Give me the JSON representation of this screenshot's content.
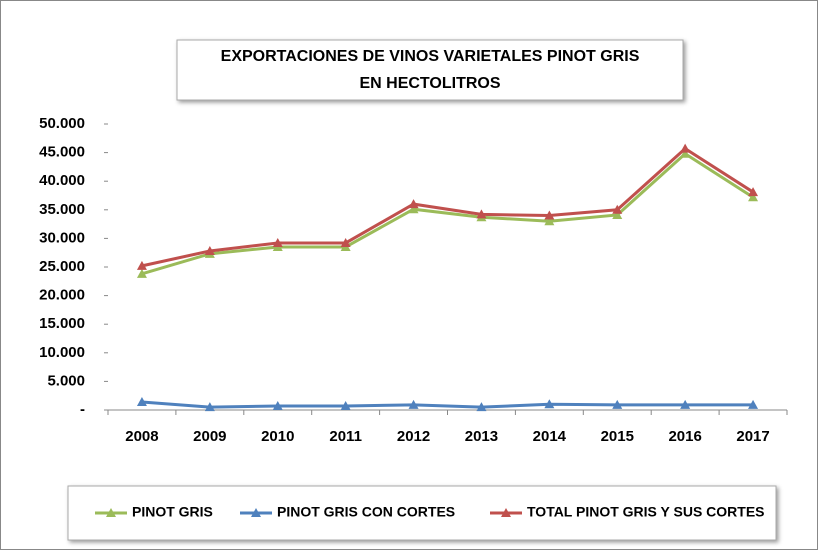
{
  "chart_data": {
    "type": "line",
    "title": "EXPORTACIONES DE VINOS VARIETALES PINOT GRIS EN HECTOLITROS",
    "categories": [
      "2008",
      "2009",
      "2010",
      "2011",
      "2012",
      "2013",
      "2014",
      "2015",
      "2016",
      "2017"
    ],
    "series": [
      {
        "name": "PINOT GRIS",
        "color": "#9bbb59",
        "values": [
          23800,
          27300,
          28500,
          28500,
          35100,
          33700,
          33000,
          34100,
          44800,
          37200
        ]
      },
      {
        "name": "PINOT GRIS CON CORTES",
        "color": "#4f81bd",
        "values": [
          1400,
          500,
          700,
          700,
          900,
          500,
          1000,
          900,
          900,
          900
        ]
      },
      {
        "name": "TOTAL PINOT GRIS Y SUS CORTES",
        "color": "#c0504d",
        "values": [
          25200,
          27800,
          29200,
          29200,
          36000,
          34200,
          34000,
          35000,
          45700,
          38100
        ]
      }
    ],
    "ylim": [
      0,
      50000
    ],
    "yticks": [
      {
        "value": 0,
        "label": "-"
      },
      {
        "value": 5000,
        "label": "5.000"
      },
      {
        "value": 10000,
        "label": "10.000"
      },
      {
        "value": 15000,
        "label": "15.000"
      },
      {
        "value": 20000,
        "label": "20.000"
      },
      {
        "value": 25000,
        "label": "25.000"
      },
      {
        "value": 30000,
        "label": "30.000"
      },
      {
        "value": 35000,
        "label": "35.000"
      },
      {
        "value": 40000,
        "label": "40.000"
      },
      {
        "value": 45000,
        "label": "45.000"
      },
      {
        "value": 50000,
        "label": "50.000"
      }
    ],
    "grid": false,
    "legend": "bottom"
  }
}
